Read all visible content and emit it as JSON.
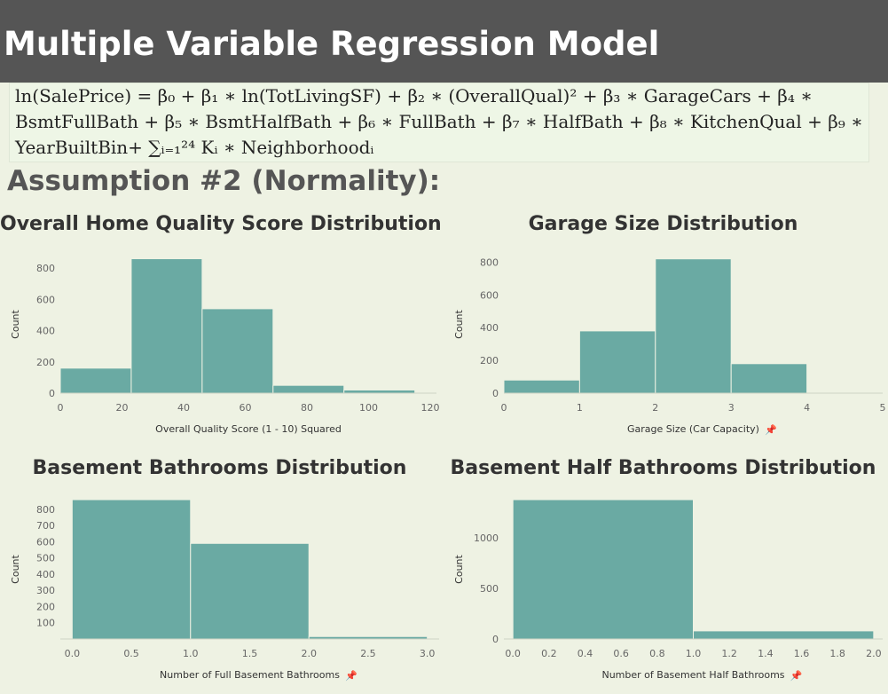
{
  "header": {
    "title": "Multiple Variable Regression Model"
  },
  "formula": {
    "line1": "ln(SalePrice) = β₀ + β₁ ∗ ln(TotLivingSF) + β₂ ∗ (OverallQual)² + β₃ ∗ GarageCars + β₄ ∗",
    "line2": "BsmtFullBath + β₅ ∗ BsmtHalfBath + β₆ ∗ FullBath + β₇ ∗ HalfBath + β₈ ∗ KitchenQual + β₉ ∗",
    "line3": "YearBuiltBin+ ∑ᵢ₌₁²⁴ Kᵢ ∗ Neighborhoodᵢ"
  },
  "subtitle": "Assumption #2 (Normality):",
  "colors": {
    "bar": "#6aaaa3",
    "background": "#eef2e3",
    "header": "#555555"
  },
  "pin_icon": "pin-icon",
  "chart_data": [
    {
      "type": "bar",
      "title": "Overall Home Quality Score Distribution",
      "xlabel": "Overall Quality Score (1 - 10) Squared",
      "ylabel": "Count",
      "bins": [
        [
          0,
          23
        ],
        [
          23,
          46
        ],
        [
          46,
          69
        ],
        [
          69,
          92
        ],
        [
          92,
          115
        ]
      ],
      "values": [
        160,
        860,
        540,
        50,
        20
      ],
      "xlim": [
        0,
        122
      ],
      "ylim": [
        0,
        880
      ],
      "xticks": [
        0,
        20,
        40,
        60,
        80,
        100,
        120
      ],
      "yticks": [
        0,
        200,
        400,
        600,
        800
      ],
      "pinned": false
    },
    {
      "type": "bar",
      "title": "Garage Size Distribution",
      "xlabel": "Garage Size (Car Capacity)",
      "ylabel": "Count",
      "bins": [
        [
          0,
          1
        ],
        [
          1,
          2
        ],
        [
          2,
          3
        ],
        [
          3,
          4
        ]
      ],
      "values": [
        80,
        380,
        820,
        180
      ],
      "xlim": [
        0,
        5
      ],
      "ylim": [
        0,
        840
      ],
      "xticks": [
        0,
        1,
        2,
        3,
        4,
        5
      ],
      "yticks": [
        0,
        200,
        400,
        600,
        800
      ],
      "pinned": true
    },
    {
      "type": "bar",
      "title": "Basement Bathrooms Distribution",
      "xlabel": "Number of Full Basement Bathrooms",
      "ylabel": "Count",
      "bins": [
        [
          0,
          1
        ],
        [
          1,
          2
        ],
        [
          2,
          3
        ]
      ],
      "values": [
        860,
        590,
        15
      ],
      "xlim": [
        -0.1,
        3.1
      ],
      "ylim": [
        0,
        860
      ],
      "xticks": [
        "0.0",
        "0.5",
        "1.0",
        "1.5",
        "2.0",
        "2.5",
        "3.0"
      ],
      "yticks": [
        100,
        200,
        300,
        400,
        500,
        600,
        700,
        800
      ],
      "pinned": true
    },
    {
      "type": "bar",
      "title": "Basement Half Bathrooms Distribution",
      "xlabel": "Number of Basement Half Bathrooms",
      "ylabel": "Count",
      "bins": [
        [
          0,
          1
        ],
        [
          1,
          2
        ]
      ],
      "values": [
        1380,
        80
      ],
      "xlim": [
        -0.05,
        2.05
      ],
      "ylim": [
        0,
        1380
      ],
      "xticks": [
        "0.0",
        "0.2",
        "0.4",
        "0.6",
        "0.8",
        "1.0",
        "1.2",
        "1.4",
        "1.6",
        "1.8",
        "2.0"
      ],
      "yticks": [
        0,
        500,
        1000
      ],
      "pinned": true
    }
  ]
}
